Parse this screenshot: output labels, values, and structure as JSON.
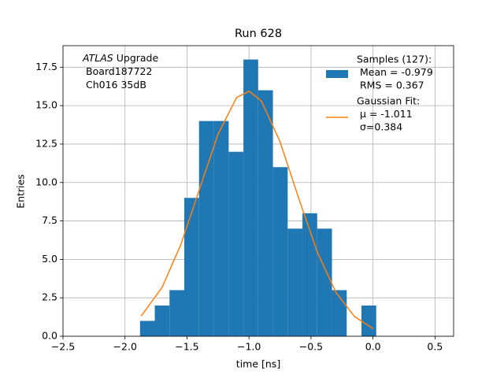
{
  "chart_data": {
    "type": "histogram",
    "title": "Run 628",
    "x_label": "time [ns]",
    "y_label": "Entries",
    "annotation": [
      [
        "ATLAS",
        "Upgrade"
      ],
      [
        "Board187722"
      ],
      [
        "Ch016 35dB"
      ]
    ],
    "bins": [
      -1.879,
      -1.76,
      -1.641,
      -1.522,
      -1.403,
      -1.283,
      -1.164,
      -1.045,
      -0.926,
      -0.807,
      -0.688,
      -0.569,
      -0.45,
      -0.331,
      -0.212,
      -0.093,
      0.026
    ],
    "series": [
      {
        "name": [
          "Samples (127):",
          "Mean = -0.979",
          "RMS = 0.367"
        ],
        "color": "#1f77b4",
        "values": [
          1,
          2,
          3,
          9,
          14,
          14,
          12,
          18,
          16,
          11,
          7,
          8,
          7,
          3,
          0,
          2
        ]
      },
      {
        "name": [
          "Gaussian Fit:",
          "μ = -1.011",
          "σ=0.384"
        ],
        "color": "#ff7f0e",
        "type": "line",
        "x": [
          -1.87,
          -1.7,
          -1.55,
          -1.4,
          -1.25,
          -1.1,
          -1.0,
          -0.9,
          -0.75,
          -0.6,
          -0.45,
          -0.3,
          -0.15,
          0.0
        ],
        "values": [
          1.31,
          3.19,
          5.96,
          9.55,
          13.14,
          15.52,
          15.94,
          15.3,
          12.66,
          9.0,
          5.49,
          2.87,
          1.29,
          0.5
        ]
      }
    ],
    "xlim": [
      -2.5,
      0.65
    ],
    "ylim": [
      0,
      18.9
    ],
    "xticks": [
      {
        "value": -2.5,
        "label": "−2.5"
      },
      {
        "value": -2.0,
        "label": "−2.0"
      },
      {
        "value": -1.5,
        "label": "−1.5"
      },
      {
        "value": -1.0,
        "label": "−1.0"
      },
      {
        "value": -0.5,
        "label": "−0.5"
      },
      {
        "value": 0.0,
        "label": "0.0"
      },
      {
        "value": 0.5,
        "label": "0.5"
      }
    ],
    "yticks": [
      {
        "value": 0,
        "label": "0.0"
      },
      {
        "value": 2.5,
        "label": "2.5"
      },
      {
        "value": 5,
        "label": "5.0"
      },
      {
        "value": 7.5,
        "label": "7.5"
      },
      {
        "value": 10,
        "label": "10.0"
      },
      {
        "value": 12.5,
        "label": "12.5"
      },
      {
        "value": 15,
        "label": "15.0"
      },
      {
        "value": 17.5,
        "label": "17.5"
      }
    ],
    "grid": true,
    "legend": "upper right"
  }
}
